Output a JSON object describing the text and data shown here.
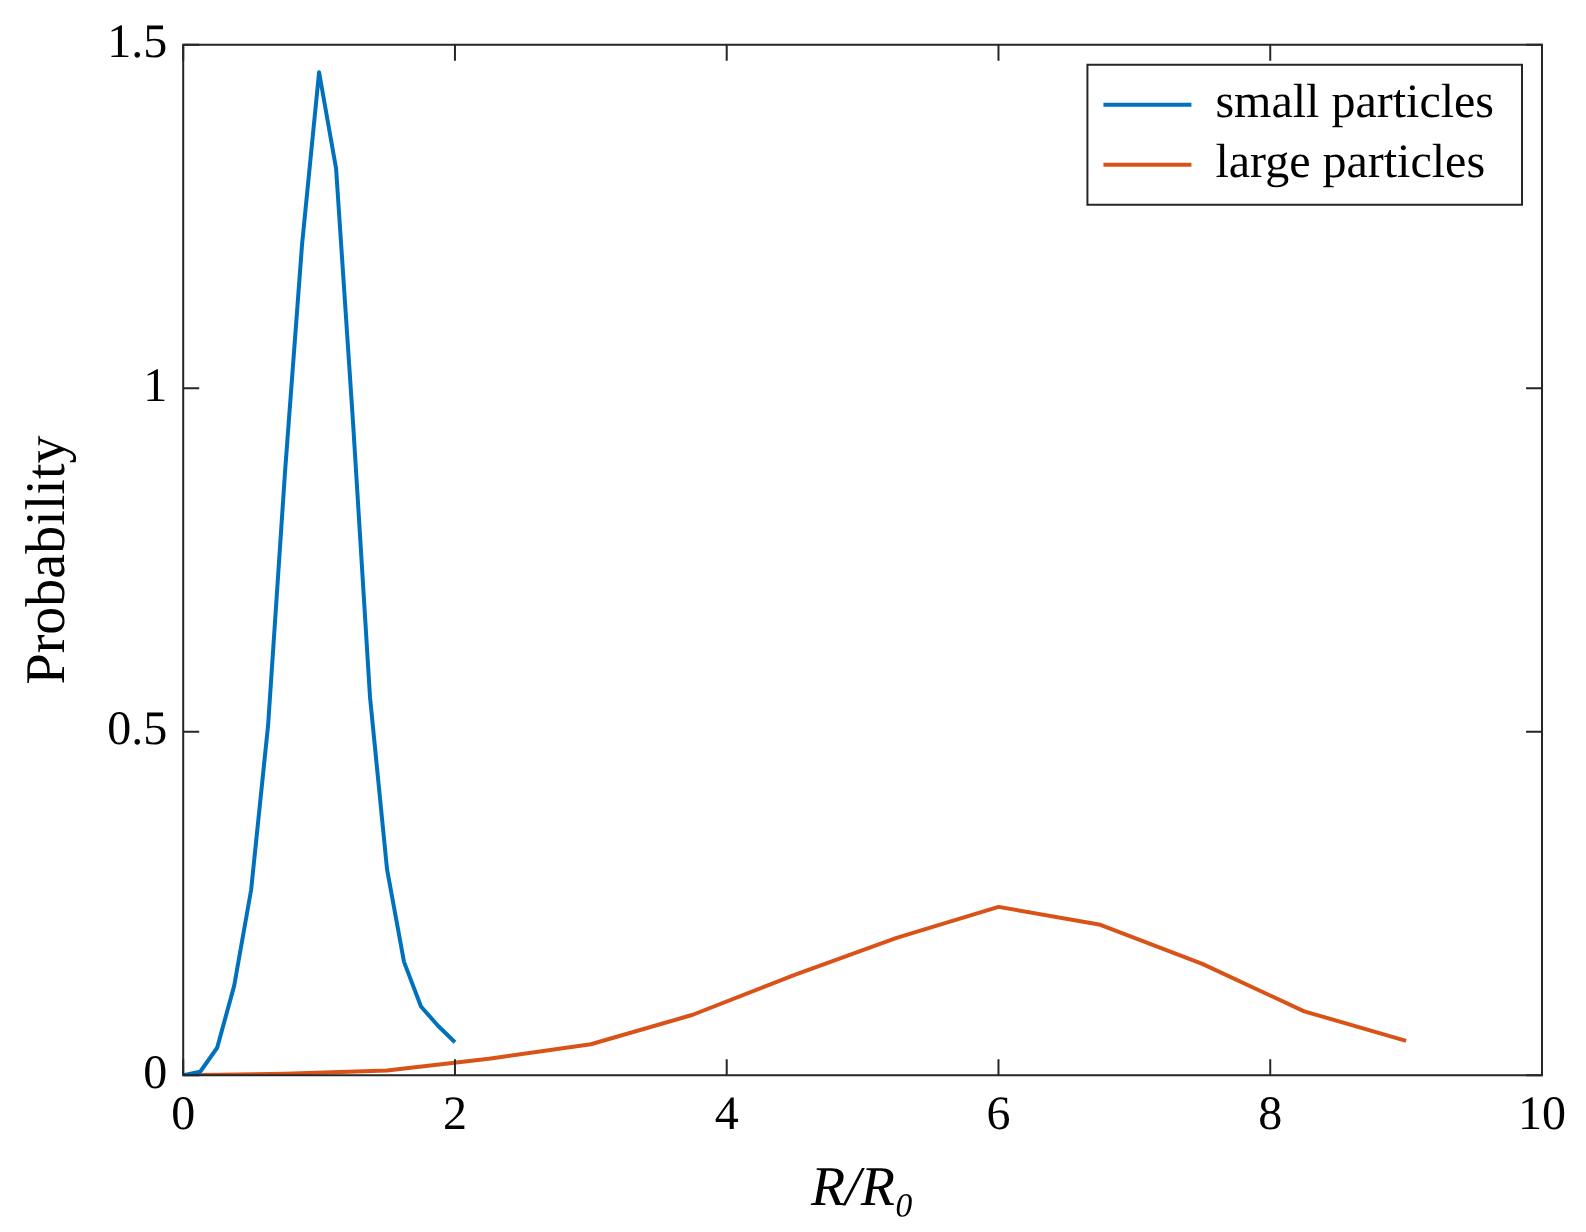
{
  "chart_data": {
    "type": "line",
    "xlabel": "R/R₀",
    "ylabel": "Probability",
    "xlim": [
      0,
      10
    ],
    "xticks": [
      0,
      2,
      4,
      6,
      8,
      10
    ],
    "ylim": [
      0,
      1.5
    ],
    "yticks": [
      0,
      0.5,
      1,
      1.5
    ],
    "grid": false,
    "legend": "top right",
    "marker": "none",
    "line_style": "solid",
    "series": [
      {
        "name": "small particles",
        "color": "#0072bd",
        "x": [
          0,
          0.125,
          0.25,
          0.375,
          0.5,
          0.625,
          0.75,
          0.875,
          1,
          1.125,
          1.25,
          1.375,
          1.5,
          1.625,
          1.75,
          1.875,
          2
        ],
        "values": [
          0,
          0.005,
          0.04,
          0.13,
          0.27,
          0.51,
          0.88,
          1.21,
          1.46,
          1.32,
          0.95,
          0.55,
          0.3,
          0.165,
          0.1,
          0.072,
          0.048
        ]
      },
      {
        "name": "large particles",
        "color": "#d95319",
        "x": [
          0,
          0.75,
          1.5,
          2.25,
          3,
          3.75,
          4.5,
          5.25,
          6,
          6.75,
          7.5,
          8.25,
          9
        ],
        "values": [
          0,
          0.002,
          0.007,
          0.024,
          0.045,
          0.088,
          0.146,
          0.2,
          0.245,
          0.219,
          0.162,
          0.093,
          0.05
        ]
      }
    ]
  }
}
